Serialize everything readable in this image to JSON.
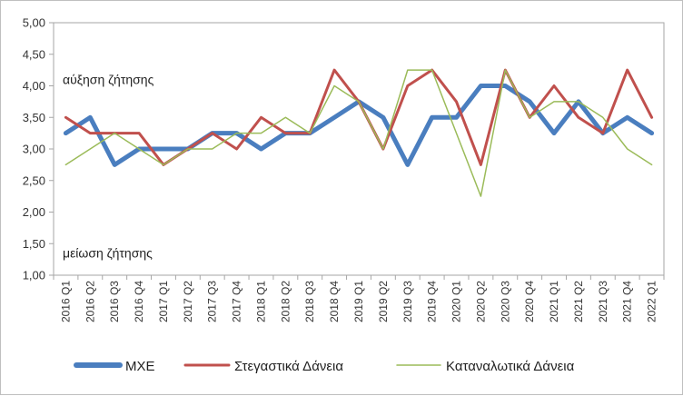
{
  "chart_data": {
    "type": "line",
    "title": "",
    "xlabel": "",
    "ylabel": "",
    "ylim": [
      1.0,
      5.0
    ],
    "ytick_step": 0.5,
    "grid": false,
    "legend_position": "bottom",
    "categories": [
      "2016 Q1",
      "2016 Q2",
      "2016 Q3",
      "2016 Q4",
      "2017 Q1",
      "2017 Q2",
      "2017 Q3",
      "2017 Q4",
      "2018 Q1",
      "2018 Q2",
      "2018 Q3",
      "2018 Q4",
      "2019 Q1",
      "2019 Q2",
      "2019 Q3",
      "2019 Q4",
      "2020 Q1",
      "2020 Q2",
      "2020 Q3",
      "2020 Q4",
      "2021 Q1",
      "2021 Q2",
      "2021 Q3",
      "2021 Q4",
      "2022 Q1"
    ],
    "y_tick_labels": [
      "1,00",
      "1,50",
      "2,00",
      "2,50",
      "3,00",
      "3,50",
      "4,00",
      "4,50",
      "5,00"
    ],
    "annotations": [
      {
        "text": "αύξηση ζήτησης",
        "y": 4.1
      },
      {
        "text": "μείωση ζήτησης",
        "y": 1.35
      }
    ],
    "series": [
      {
        "name": "ΜΧΕ",
        "color": "#4a7ebf",
        "values": [
          3.25,
          3.5,
          2.75,
          3.0,
          3.0,
          3.0,
          3.25,
          3.25,
          3.0,
          3.25,
          3.25,
          3.5,
          3.75,
          3.5,
          2.75,
          3.5,
          3.5,
          4.0,
          4.0,
          3.75,
          3.25,
          3.75,
          3.25,
          3.5,
          3.25
        ]
      },
      {
        "name": "Στεγαστικά Δάνεια",
        "color": "#c0504d",
        "values": [
          3.5,
          3.25,
          3.25,
          3.25,
          2.75,
          3.0,
          3.25,
          3.0,
          3.5,
          3.25,
          3.25,
          4.25,
          3.75,
          3.0,
          4.0,
          4.25,
          3.75,
          2.75,
          4.25,
          3.5,
          4.0,
          3.5,
          3.25,
          4.25,
          3.5
        ]
      },
      {
        "name": "Καταναλωτικά Δάνεια",
        "color": "#9bbb59",
        "values": [
          2.75,
          3.0,
          3.25,
          3.0,
          2.75,
          3.0,
          3.0,
          3.25,
          3.25,
          3.5,
          3.25,
          4.0,
          3.75,
          3.0,
          4.25,
          4.25,
          3.25,
          2.25,
          4.25,
          3.5,
          3.75,
          3.75,
          3.5,
          3.0,
          2.75
        ]
      }
    ]
  }
}
